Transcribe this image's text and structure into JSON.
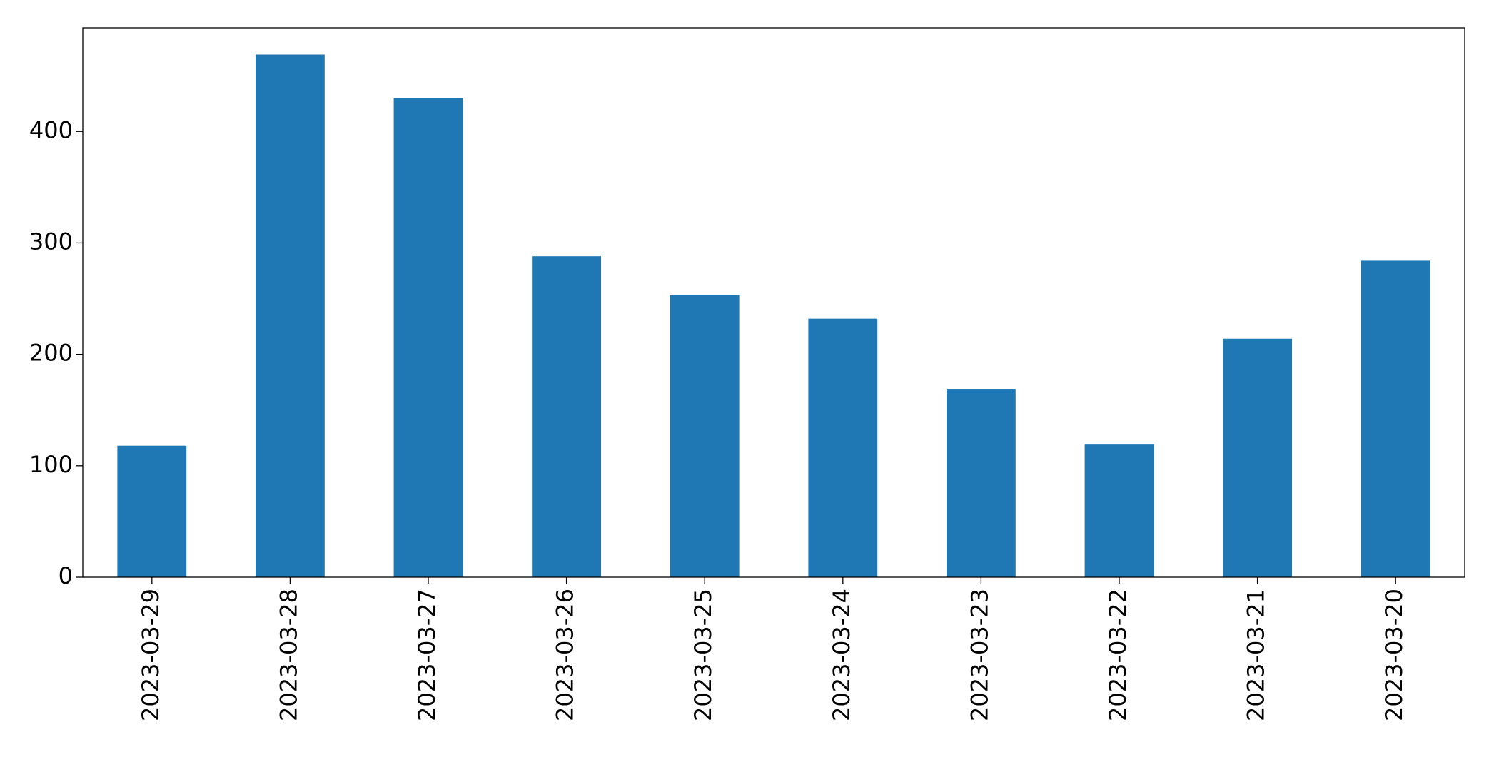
{
  "chart_data": {
    "type": "bar",
    "categories": [
      "2023-03-29",
      "2023-03-28",
      "2023-03-27",
      "2023-03-26",
      "2023-03-25",
      "2023-03-24",
      "2023-03-23",
      "2023-03-22",
      "2023-03-21",
      "2023-03-20"
    ],
    "values": [
      118,
      469,
      430,
      288,
      253,
      232,
      169,
      119,
      214,
      284
    ],
    "color": "#1f77b4",
    "ylim": [
      0,
      493
    ],
    "yticks": [
      0,
      100,
      200,
      300,
      400
    ],
    "grid": false
  }
}
